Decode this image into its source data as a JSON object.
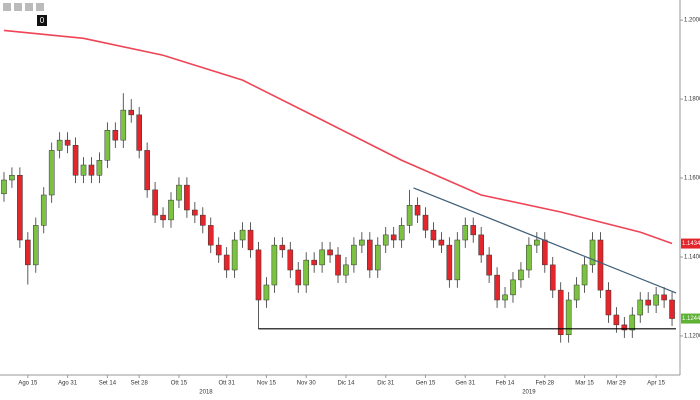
{
  "toolbar_label": "0",
  "chart_data": {
    "type": "candlestick",
    "open": [
      1.156,
      1.1595,
      1.1607,
      1.1443,
      1.138,
      1.148,
      1.1557,
      1.167,
      1.1696,
      1.1683,
      1.1607,
      1.1633,
      1.1607,
      1.1645,
      1.1721,
      1.1696,
      1.1772,
      1.176,
      1.167,
      1.157,
      1.1506,
      1.1494,
      1.1544,
      1.1582,
      1.1519,
      1.1506,
      1.148,
      1.143,
      1.1405,
      1.1367,
      1.1443,
      1.1468,
      1.1418,
      1.1291,
      1.1329,
      1.143,
      1.1418,
      1.1367,
      1.1329,
      1.1392,
      1.138,
      1.1418,
      1.1405,
      1.1354,
      1.138,
      1.143,
      1.1443,
      1.1367,
      1.143,
      1.1456,
      1.1443,
      1.148,
      1.1531,
      1.1506,
      1.1468,
      1.1443,
      1.143,
      1.1342,
      1.1443,
      1.148,
      1.1456,
      1.1405,
      1.1354,
      1.1291,
      1.1304,
      1.1342,
      1.1367,
      1.143,
      1.1443,
      1.138,
      1.1316,
      1.1203,
      1.1291,
      1.1329,
      1.138,
      1.1443,
      1.1316,
      1.1253,
      1.1228,
      1.1215,
      1.1253,
      1.1291,
      1.1278,
      1.1304,
      1.1291
    ],
    "high": [
      1.1615,
      1.1627,
      1.1627,
      1.1463,
      1.15,
      1.1577,
      1.169,
      1.1716,
      1.1716,
      1.1703,
      1.1653,
      1.1653,
      1.1665,
      1.1741,
      1.1741,
      1.1815,
      1.18,
      1.178,
      1.169,
      1.159,
      1.1526,
      1.1564,
      1.1602,
      1.1602,
      1.1539,
      1.1526,
      1.15,
      1.145,
      1.1425,
      1.1463,
      1.1488,
      1.1488,
      1.1438,
      1.1349,
      1.145,
      1.145,
      1.1438,
      1.1387,
      1.1412,
      1.1412,
      1.1438,
      1.1438,
      1.1425,
      1.14,
      1.145,
      1.1463,
      1.1463,
      1.145,
      1.1476,
      1.1476,
      1.15,
      1.157,
      1.1551,
      1.1526,
      1.1488,
      1.1463,
      1.145,
      1.1463,
      1.15,
      1.15,
      1.1476,
      1.1425,
      1.1374,
      1.1324,
      1.1362,
      1.1387,
      1.145,
      1.1463,
      1.1463,
      1.14,
      1.1336,
      1.1311,
      1.1349,
      1.14,
      1.1463,
      1.1463,
      1.1336,
      1.1273,
      1.1248,
      1.1273,
      1.1311,
      1.1311,
      1.1324,
      1.1324,
      1.1311
    ],
    "low": [
      1.154,
      1.1575,
      1.1423,
      1.133,
      1.136,
      1.146,
      1.1537,
      1.165,
      1.1663,
      1.1587,
      1.1587,
      1.1587,
      1.1587,
      1.1625,
      1.1676,
      1.1676,
      1.174,
      1.165,
      1.155,
      1.1486,
      1.1474,
      1.1474,
      1.1524,
      1.1499,
      1.1486,
      1.146,
      1.141,
      1.1385,
      1.1347,
      1.1347,
      1.1423,
      1.1398,
      1.1218,
      1.1271,
      1.1309,
      1.1398,
      1.1347,
      1.1309,
      1.1309,
      1.136,
      1.136,
      1.1385,
      1.1334,
      1.1334,
      1.136,
      1.141,
      1.1347,
      1.1347,
      1.141,
      1.1423,
      1.1423,
      1.146,
      1.1486,
      1.1448,
      1.1423,
      1.141,
      1.1322,
      1.1322,
      1.1423,
      1.1436,
      1.1385,
      1.1334,
      1.1271,
      1.1271,
      1.1284,
      1.1322,
      1.1347,
      1.141,
      1.136,
      1.1296,
      1.1183,
      1.1183,
      1.1271,
      1.1309,
      1.136,
      1.1296,
      1.1233,
      1.1208,
      1.1195,
      1.1195,
      1.1233,
      1.1258,
      1.1258,
      1.1271,
      1.1225
    ],
    "close": [
      1.1595,
      1.1607,
      1.1443,
      1.138,
      1.148,
      1.1557,
      1.167,
      1.1696,
      1.1683,
      1.1607,
      1.1633,
      1.1607,
      1.1645,
      1.1721,
      1.1696,
      1.1772,
      1.176,
      1.167,
      1.157,
      1.1506,
      1.1494,
      1.1544,
      1.1582,
      1.1519,
      1.1506,
      1.148,
      1.143,
      1.1405,
      1.1367,
      1.1443,
      1.1468,
      1.1418,
      1.1291,
      1.1329,
      1.143,
      1.1418,
      1.1367,
      1.1329,
      1.1392,
      1.138,
      1.1418,
      1.1405,
      1.1354,
      1.138,
      1.143,
      1.1443,
      1.1367,
      1.143,
      1.1456,
      1.1443,
      1.148,
      1.1531,
      1.1506,
      1.1468,
      1.1443,
      1.143,
      1.1342,
      1.1443,
      1.148,
      1.1456,
      1.1405,
      1.1354,
      1.1291,
      1.1304,
      1.1342,
      1.1367,
      1.143,
      1.1443,
      1.138,
      1.1316,
      1.1203,
      1.1291,
      1.1329,
      1.138,
      1.1443,
      1.1316,
      1.1253,
      1.1228,
      1.1215,
      1.1253,
      1.1291,
      1.1278,
      1.1304,
      1.1291,
      1.1244
    ],
    "up_color": "#7cc242",
    "down_color": "#e3262b",
    "moving_average": {
      "color": "#ee4455",
      "x": [
        0,
        10,
        20,
        30,
        40,
        50,
        60,
        70,
        80,
        84
      ],
      "values": [
        1.1974,
        1.1954,
        1.1911,
        1.1848,
        1.1747,
        1.1645,
        1.1557,
        1.1514,
        1.1463,
        1.1434
      ]
    },
    "trendline": {
      "color": "#3e5f78",
      "x": [
        51.5,
        84.5
      ],
      "values": [
        1.1575,
        1.1309
      ]
    },
    "support": {
      "color": "#000000",
      "x": [
        32,
        84.5
      ],
      "values": [
        1.1218,
        1.1218
      ]
    },
    "last_labels": [
      {
        "value": 1.1434,
        "label": "1.1434",
        "color": "#e3262b"
      },
      {
        "value": 1.1244,
        "label": "1.1244",
        "color": "#5fb236"
      }
    ],
    "ylim": [
      1.1101,
      1.2051
    ],
    "yticks": [
      {
        "value": 1.12,
        "label": "1.1200"
      },
      {
        "value": 1.14,
        "label": "1.1400"
      },
      {
        "value": 1.16,
        "label": "1.1600"
      },
      {
        "value": 1.18,
        "label": "1.1800"
      },
      {
        "value": 1.2,
        "label": "1.2000"
      }
    ],
    "xlim": [
      -0.5,
      85
    ],
    "xticks": [
      {
        "value": 3,
        "label": "Ago 15"
      },
      {
        "value": 8,
        "label": "Ago 31"
      },
      {
        "value": 13,
        "label": "Set 14"
      },
      {
        "value": 17,
        "label": "Set 28"
      },
      {
        "value": 22,
        "label": "Ott 15"
      },
      {
        "value": 28,
        "label": "Ott 31"
      },
      {
        "value": 33,
        "label": "Nov 15"
      },
      {
        "value": 38,
        "label": "Nov 30"
      },
      {
        "value": 43,
        "label": "Dic 14"
      },
      {
        "value": 48,
        "label": "Dic 31"
      },
      {
        "value": 53,
        "label": "Gen 15"
      },
      {
        "value": 58,
        "label": "Gen 31"
      },
      {
        "value": 63,
        "label": "Feb 14"
      },
      {
        "value": 68,
        "label": "Feb 28"
      },
      {
        "value": 73,
        "label": "Mar 15"
      },
      {
        "value": 77,
        "label": "Mar 29"
      },
      {
        "value": 82,
        "label": "Apr 15"
      }
    ],
    "year_labels": [
      {
        "value": 25.4,
        "label": "2018"
      },
      {
        "value": 66,
        "label": "2019"
      }
    ]
  }
}
